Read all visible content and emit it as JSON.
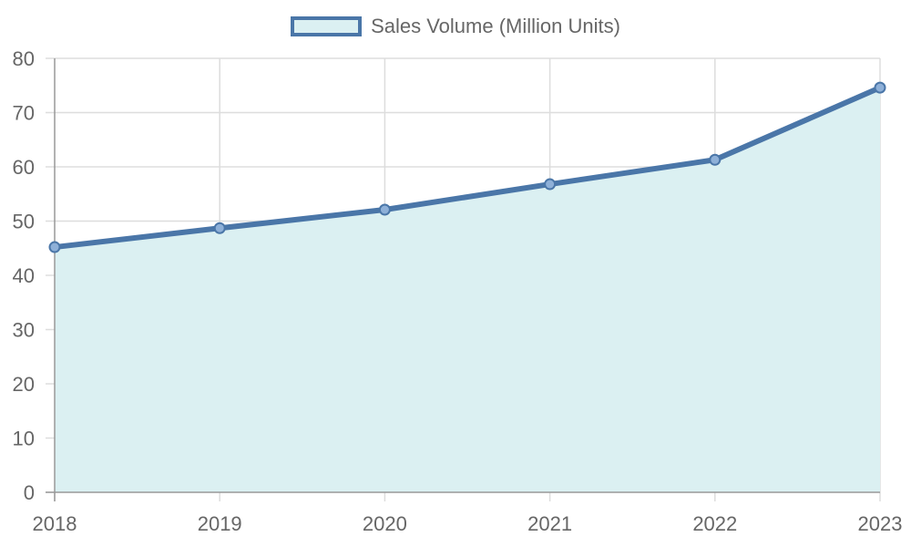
{
  "chart_data": {
    "type": "area",
    "categories": [
      "2018",
      "2019",
      "2020",
      "2021",
      "2022",
      "2023"
    ],
    "series": [
      {
        "name": "Sales Volume (Million Units)",
        "values": [
          45.2,
          48.7,
          52.1,
          56.8,
          61.3,
          74.6
        ]
      }
    ],
    "title": "",
    "xlabel": "",
    "ylabel": "",
    "ylim": [
      0,
      80
    ],
    "yticks": [
      "0",
      "10",
      "20",
      "30",
      "40",
      "50",
      "60",
      "70",
      "80"
    ],
    "grid": true,
    "legend_position": "top-center",
    "colors": {
      "line": "#4a76a8",
      "fill": "#dbf0f2",
      "point": "#8eb0d8",
      "grid": "#dddddd",
      "axis": "#999999",
      "text": "#666666"
    }
  }
}
